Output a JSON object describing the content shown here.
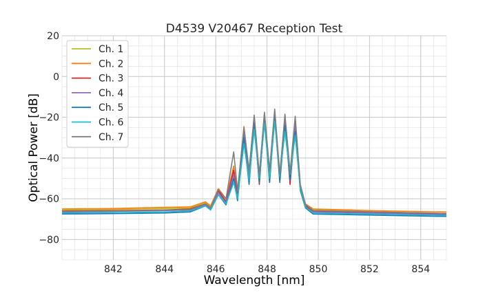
{
  "chart_data": {
    "type": "line",
    "title": "D4539 V20467 Reception Test",
    "xlabel": "Wavelength [nm]",
    "ylabel": "Optical Power [dB]",
    "xlim": [
      840,
      855
    ],
    "ylim": [
      -90,
      20
    ],
    "x_ticks": [
      842,
      844,
      846,
      848,
      850,
      852,
      854
    ],
    "y_ticks": [
      20,
      0,
      -20,
      -40,
      -60,
      -80
    ],
    "x_tick_labels": [
      "842",
      "844",
      "846",
      "848",
      "850",
      "852",
      "854"
    ],
    "y_tick_labels": [
      "20",
      "0",
      "−20",
      "−40",
      "−60",
      "−80"
    ],
    "grid": true,
    "grid_minor": true,
    "legend_position": "top-left",
    "series": [
      {
        "name": "Ch. 1",
        "color": "#bcbd22",
        "x": [
          840,
          842,
          844,
          845.0,
          845.6,
          845.8,
          846.1,
          846.4,
          846.7,
          846.85,
          847.1,
          847.3,
          847.5,
          847.7,
          847.9,
          848.1,
          848.3,
          848.5,
          848.7,
          848.9,
          849.1,
          849.3,
          849.5,
          849.8,
          852,
          855
        ],
        "y": [
          -65.5,
          -65.2,
          -64.8,
          -64.5,
          -62,
          -64,
          -56,
          -61,
          -47,
          -58,
          -26,
          -48,
          -20,
          -50,
          -18,
          -48,
          -17,
          -50,
          -20,
          -49,
          -22,
          -55,
          -63,
          -65.5,
          -66.3,
          -67.2
        ]
      },
      {
        "name": "Ch. 2",
        "color": "#ff7f0e",
        "x": [
          840,
          842,
          844,
          845.0,
          845.6,
          845.8,
          846.1,
          846.4,
          846.7,
          846.85,
          847.1,
          847.3,
          847.5,
          847.7,
          847.9,
          848.1,
          848.3,
          848.5,
          848.7,
          848.9,
          849.1,
          849.3,
          849.5,
          849.8,
          852,
          855
        ],
        "y": [
          -65.0,
          -64.8,
          -64.2,
          -64.0,
          -61.5,
          -63.5,
          -55,
          -60,
          -44,
          -57,
          -24.5,
          -47,
          -19,
          -49,
          -18.5,
          -47,
          -17,
          -49,
          -19.5,
          -48,
          -21,
          -54,
          -62.5,
          -65,
          -65.8,
          -66.5
        ]
      },
      {
        "name": "Ch. 3",
        "color": "#d62728",
        "x": [
          840,
          842,
          844,
          845.0,
          845.6,
          845.8,
          846.1,
          846.4,
          846.7,
          846.85,
          847.1,
          847.3,
          847.5,
          847.7,
          847.9,
          848.1,
          848.3,
          848.5,
          848.7,
          848.9,
          849.1,
          849.3,
          849.5,
          849.8,
          852,
          855
        ],
        "y": [
          -66.0,
          -65.8,
          -65.5,
          -65.0,
          -62.5,
          -64.5,
          -56,
          -61.5,
          -46,
          -59,
          -27,
          -52,
          -21,
          -53,
          -19,
          -52,
          -18,
          -51,
          -21,
          -53,
          -23,
          -55,
          -63.5,
          -66,
          -66.8,
          -67.5
        ]
      },
      {
        "name": "Ch. 4",
        "color": "#9467bd",
        "x": [
          840,
          842,
          844,
          845.0,
          845.6,
          845.8,
          846.1,
          846.4,
          846.7,
          846.85,
          847.1,
          847.3,
          847.5,
          847.7,
          847.9,
          848.1,
          848.3,
          848.5,
          848.7,
          848.9,
          849.1,
          849.3,
          849.5,
          849.8,
          852,
          855
        ],
        "y": [
          -66.5,
          -66.2,
          -65.8,
          -65.5,
          -63,
          -65,
          -57,
          -62,
          -48,
          -60,
          -28,
          -50,
          -22,
          -51,
          -20,
          -50,
          -19,
          -50,
          -22,
          -50,
          -24,
          -55,
          -64,
          -66.5,
          -67,
          -67.8
        ]
      },
      {
        "name": "Ch. 5",
        "color": "#1f77b4",
        "x": [
          840,
          842,
          844,
          845.0,
          845.6,
          845.8,
          846.1,
          846.4,
          846.7,
          846.85,
          847.1,
          847.3,
          847.5,
          847.7,
          847.9,
          848.1,
          848.3,
          848.5,
          848.7,
          848.9,
          849.1,
          849.3,
          849.5,
          849.8,
          852,
          855
        ],
        "y": [
          -67.5,
          -67.3,
          -67.0,
          -66.5,
          -63.5,
          -65.5,
          -58,
          -63,
          -50,
          -61,
          -30,
          -53,
          -23,
          -52,
          -21,
          -52,
          -20,
          -52,
          -24,
          -51,
          -27,
          -56,
          -64.5,
          -67.5,
          -68,
          -68.7
        ]
      },
      {
        "name": "Ch. 6",
        "color": "#17becf",
        "x": [
          840,
          842,
          844,
          845.0,
          845.6,
          845.8,
          846.1,
          846.4,
          846.7,
          846.85,
          847.1,
          847.3,
          847.5,
          847.7,
          847.9,
          848.1,
          848.3,
          848.5,
          848.7,
          848.9,
          849.1,
          849.3,
          849.5,
          849.8,
          852,
          855
        ],
        "y": [
          -67.0,
          -66.8,
          -66.5,
          -66.0,
          -63.5,
          -65.5,
          -58,
          -62.5,
          -52,
          -60,
          -33,
          -51,
          -26,
          -50,
          -23,
          -50,
          -22,
          -49,
          -27,
          -48,
          -29,
          -55,
          -64,
          -67,
          -67.5,
          -68.2
        ]
      },
      {
        "name": "Ch. 7",
        "color": "#7f7f7f",
        "x": [
          840,
          842,
          844,
          845.0,
          845.6,
          845.8,
          846.1,
          846.4,
          846.7,
          846.85,
          847.1,
          847.3,
          847.5,
          847.7,
          847.9,
          848.1,
          848.3,
          848.5,
          848.7,
          848.9,
          849.1,
          849.3,
          849.5,
          849.8,
          852,
          855
        ],
        "y": [
          -66.2,
          -66.0,
          -65.6,
          -65.3,
          -62.5,
          -64.5,
          -55.5,
          -60,
          -37,
          -56,
          -25,
          -46,
          -19,
          -48,
          -17.5,
          -46,
          -16,
          -48,
          -18.5,
          -47,
          -19.5,
          -53,
          -62.8,
          -65.8,
          -66.4,
          -67.2
        ]
      }
    ]
  }
}
